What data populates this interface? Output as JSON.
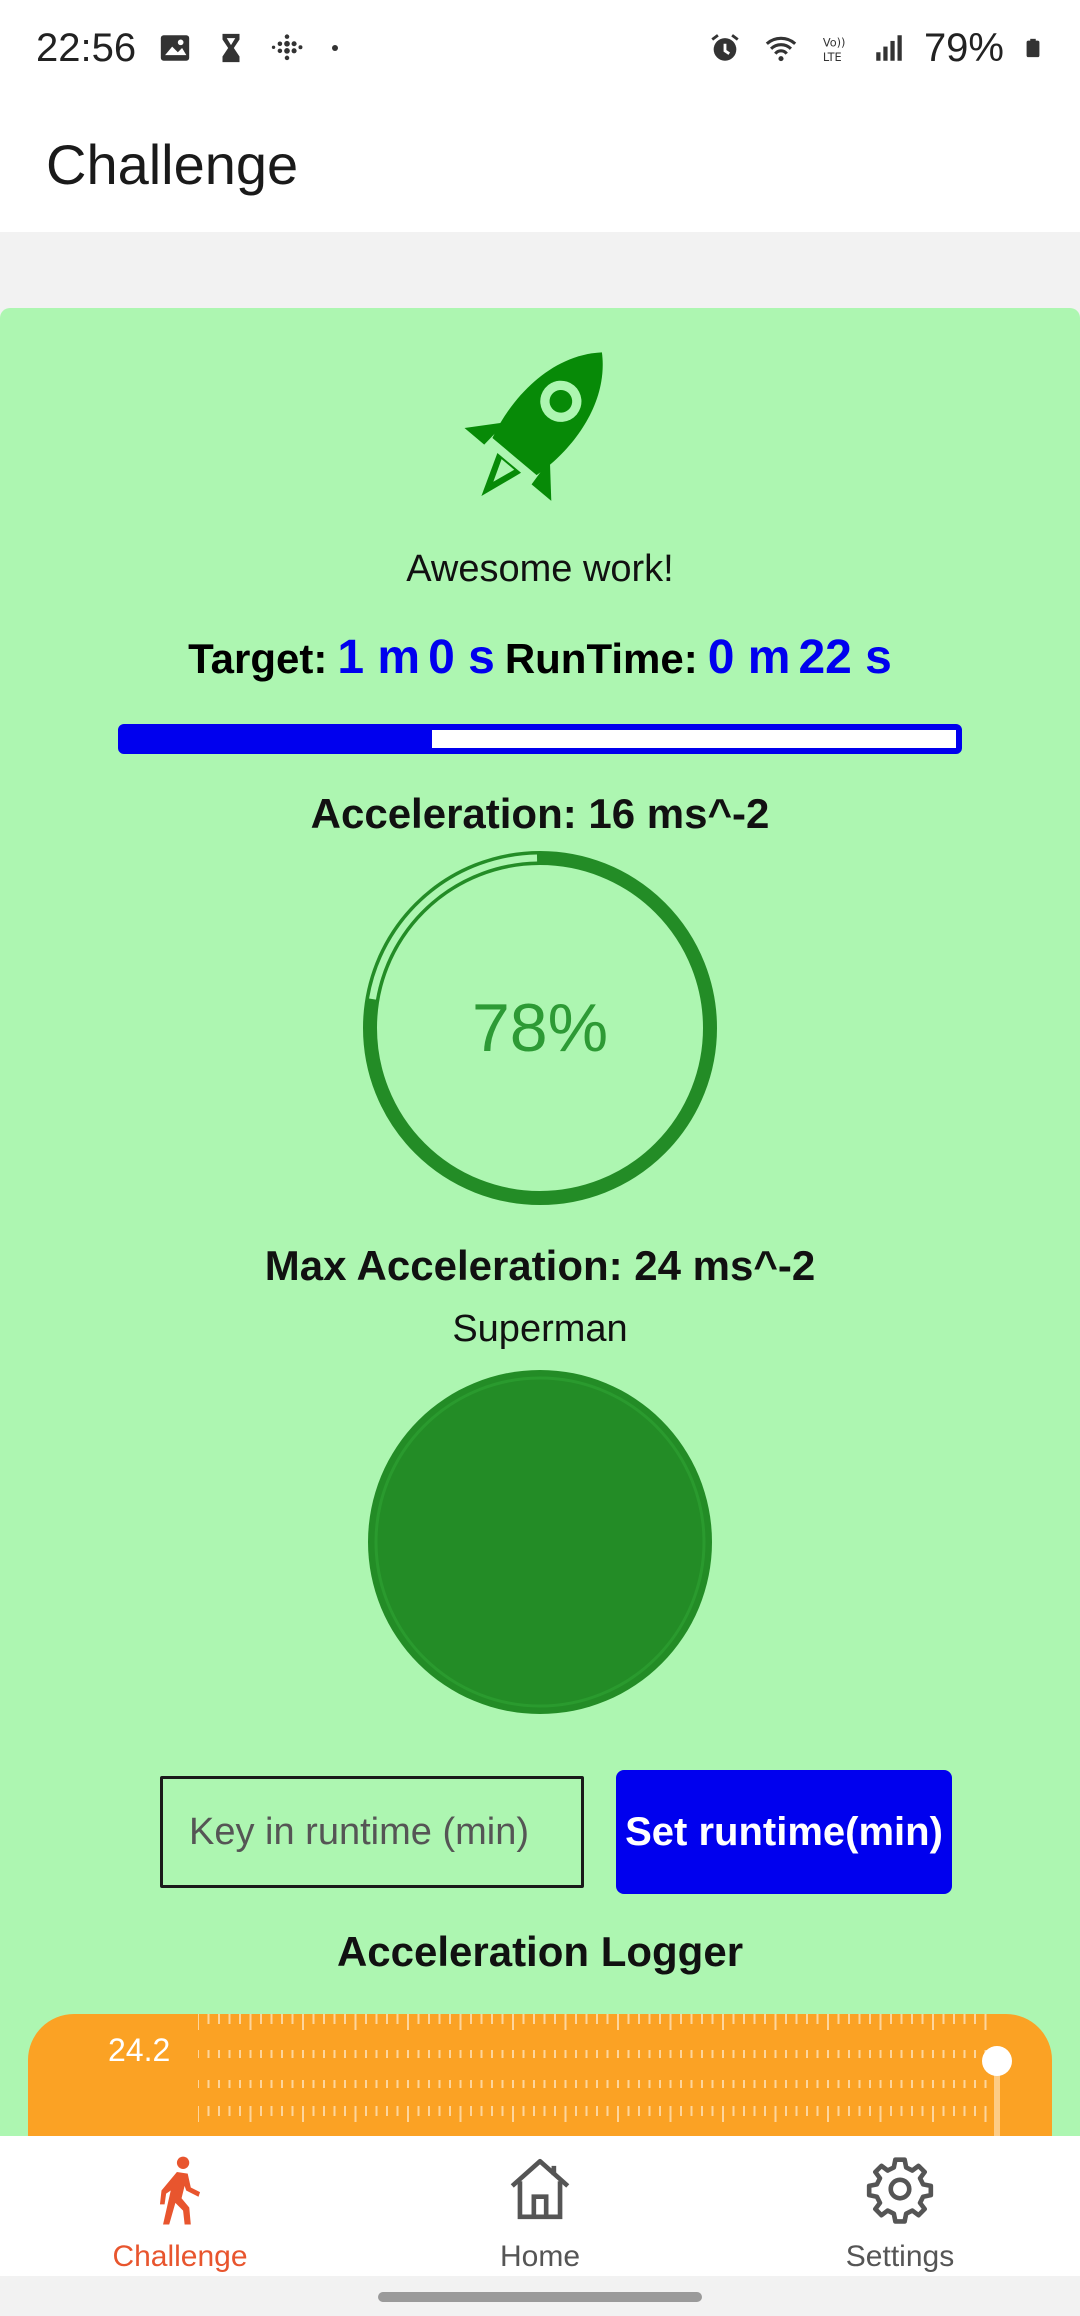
{
  "status_bar": {
    "time": "22:56",
    "battery": "79%",
    "left_icons": [
      "image-icon",
      "hourglass-icon",
      "fitbit-icon",
      "dot-icon"
    ],
    "right_icons": [
      "alarm-icon",
      "wifi-icon",
      "volte-icon",
      "signal-icon",
      "battery-icon"
    ]
  },
  "app_bar": {
    "title": "Challenge"
  },
  "challenge": {
    "message": "Awesome work!",
    "target_label": "Target:",
    "target_minutes": "1 m",
    "target_seconds": "0 s",
    "runtime_label": "RunTime:",
    "runtime_minutes": "0 m",
    "runtime_seconds": "22 s",
    "runtime_progress": 0.37,
    "acceleration_label": "Acceleration: 16 ms^-2",
    "gauge_percent_text": "78%",
    "gauge_fraction": 0.78,
    "max_acceleration_label": "Max Acceleration: 24 ms^-2",
    "rank_label": "Superman",
    "input_placeholder": "Key in runtime (min)",
    "set_button_label": "Set runtime(min)",
    "logger_title": "Acceleration Logger",
    "logger_value": "24.2"
  },
  "colors": {
    "card_bg": "#adf6b1",
    "accent_blue": "#0000ee",
    "green": "#238c26",
    "logger_orange": "#fba224",
    "nav_active": "#e8552e"
  },
  "bottom_nav": {
    "items": [
      {
        "label": "Challenge",
        "icon": "walking-person-icon",
        "active": true
      },
      {
        "label": "Home",
        "icon": "home-icon",
        "active": false
      },
      {
        "label": "Settings",
        "icon": "gear-icon",
        "active": false
      }
    ]
  }
}
